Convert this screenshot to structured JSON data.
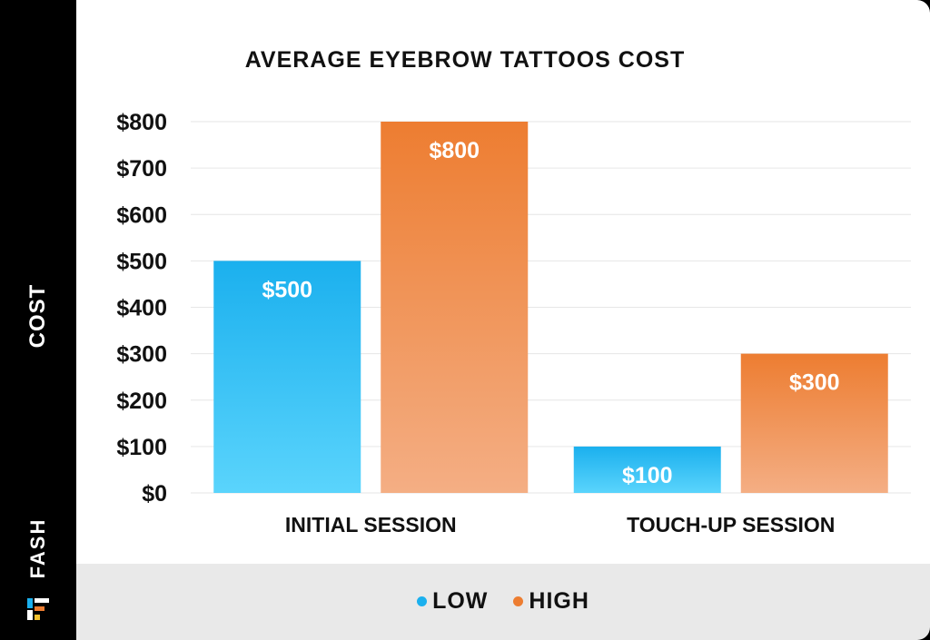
{
  "brand": {
    "name": "FASH"
  },
  "chart_data": {
    "type": "bar",
    "title": "AVERAGE EYEBROW TATTOOS COST",
    "ylabel": "COST",
    "xlabel": "",
    "categories": [
      "INITIAL SESSION",
      "TOUCH-UP SESSION"
    ],
    "series": [
      {
        "name": "LOW",
        "values": [
          500,
          100
        ],
        "color": "#1bb0ee",
        "color_light": "#5ad4fc"
      },
      {
        "name": "HIGH",
        "values": [
          800,
          300
        ],
        "color": "#ed7d31",
        "color_light": "#f4ae84"
      }
    ],
    "ylim": [
      0,
      800
    ],
    "yticks": [
      0,
      100,
      200,
      300,
      400,
      500,
      600,
      700,
      800
    ],
    "ytick_labels": [
      "$0",
      "$100",
      "$200",
      "$300",
      "$400",
      "$500",
      "$600",
      "$700",
      "$800"
    ],
    "data_labels": [
      [
        "$500",
        "$100"
      ],
      [
        "$800",
        "$300"
      ]
    ],
    "grid": true,
    "legend_position": "bottom"
  }
}
